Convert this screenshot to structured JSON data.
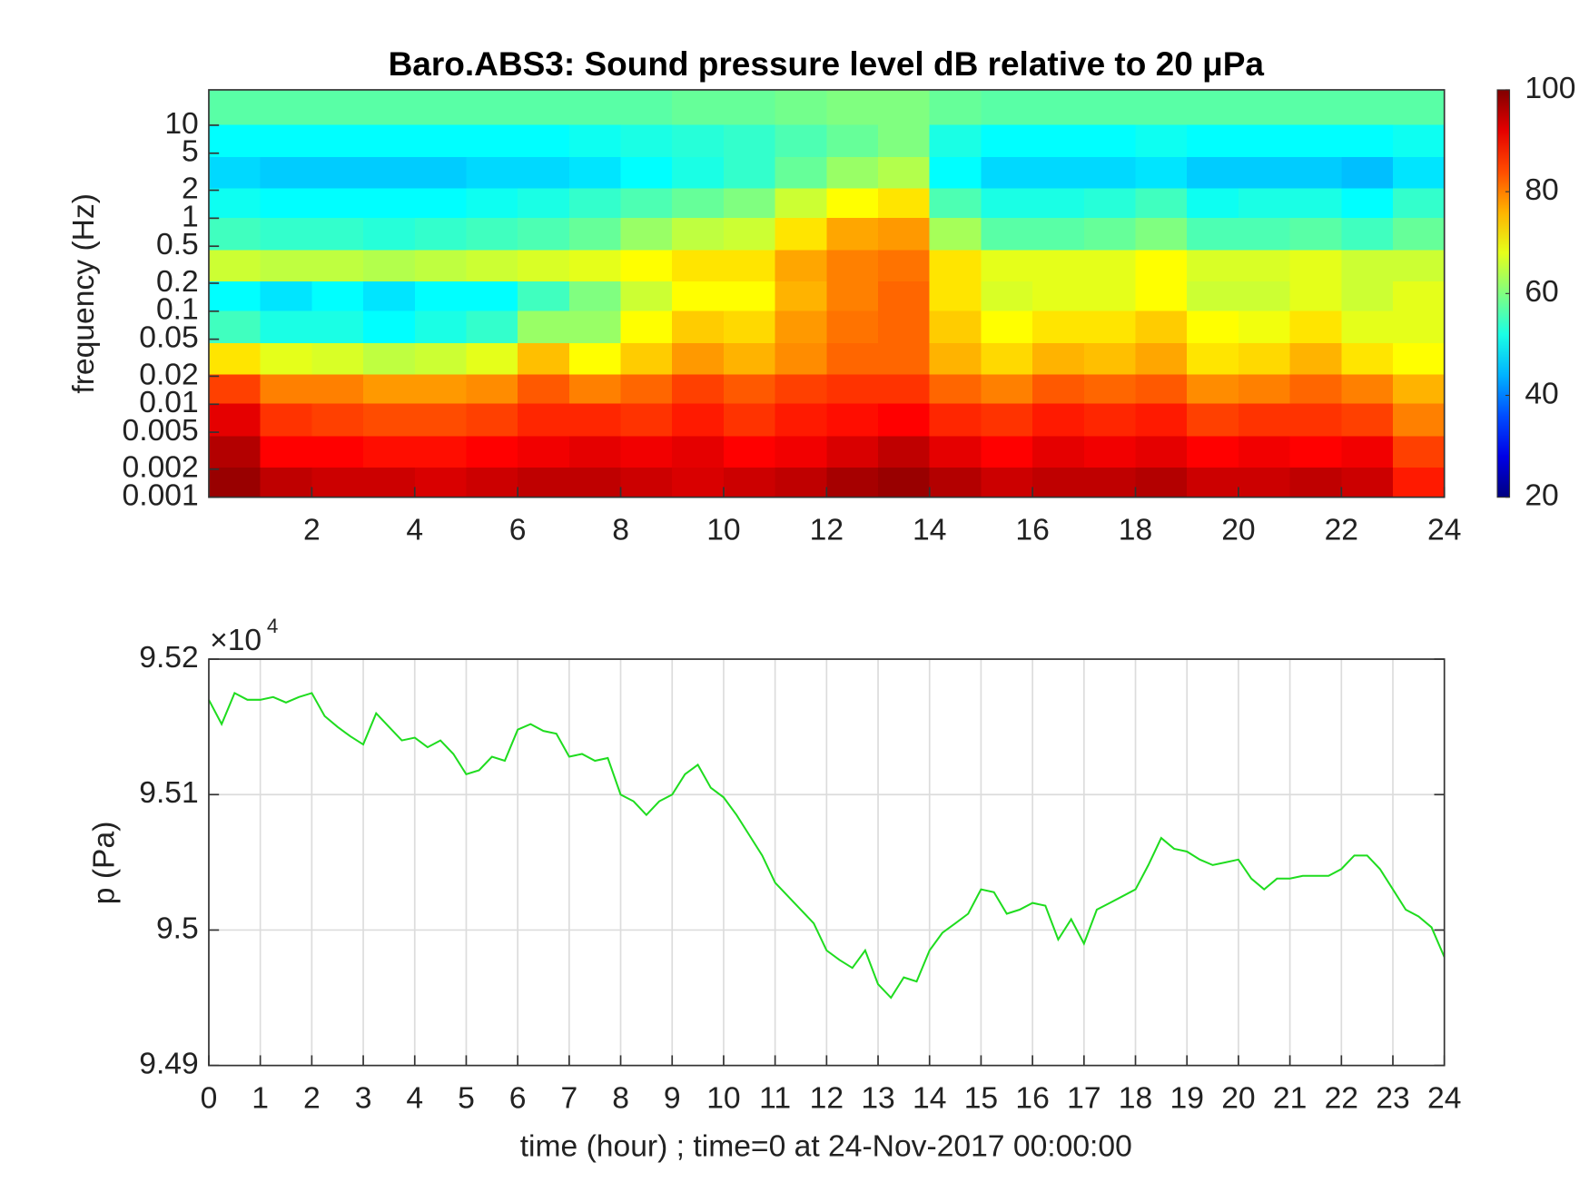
{
  "chart_data": [
    {
      "type": "heatmap",
      "title": "Baro.ABS3: Sound pressure level dB relative to 20 μPa",
      "y_label": "frequency (Hz)",
      "ylog": true,
      "x": [
        0.5,
        1.5,
        2.5,
        3.5,
        4.5,
        5.5,
        6.5,
        7.5,
        8.5,
        9.5,
        10.5,
        11.5,
        12.5,
        13.5,
        14.5,
        15.5,
        16.5,
        17.5,
        18.5,
        19.5,
        20.5,
        21.5,
        22.5,
        23.5
      ],
      "y": [
        0.0015,
        0.003,
        0.007,
        0.015,
        0.03,
        0.07,
        0.15,
        0.3,
        0.7,
        1.5,
        3,
        7,
        15
      ],
      "z": [
        [
          98,
          95,
          94,
          94,
          93,
          94,
          95,
          95,
          94,
          93,
          94,
          95,
          97,
          98,
          96,
          94,
          95,
          95,
          96,
          94,
          94,
          95,
          94,
          88
        ],
        [
          96,
          90,
          90,
          89,
          89,
          90,
          91,
          92,
          91,
          92,
          90,
          91,
          93,
          95,
          92,
          90,
          92,
          91,
          92,
          90,
          91,
          90,
          91,
          85
        ],
        [
          92,
          86,
          85,
          84,
          84,
          85,
          87,
          87,
          86,
          88,
          86,
          88,
          89,
          90,
          87,
          86,
          88,
          87,
          88,
          85,
          86,
          86,
          85,
          80
        ],
        [
          85,
          80,
          80,
          78,
          78,
          79,
          83,
          80,
          82,
          85,
          83,
          85,
          86,
          86,
          82,
          80,
          83,
          82,
          83,
          79,
          80,
          82,
          80,
          76
        ],
        [
          72,
          68,
          67,
          65,
          66,
          68,
          75,
          70,
          74,
          78,
          76,
          79,
          82,
          82,
          76,
          73,
          76,
          75,
          77,
          72,
          73,
          76,
          72,
          70
        ],
        [
          55,
          52,
          52,
          50,
          52,
          54,
          62,
          62,
          70,
          74,
          73,
          78,
          81,
          82,
          74,
          70,
          72,
          72,
          74,
          70,
          69,
          72,
          68,
          68
        ],
        [
          50,
          48,
          50,
          48,
          50,
          50,
          55,
          60,
          66,
          70,
          70,
          76,
          80,
          82,
          72,
          67,
          68,
          68,
          70,
          66,
          66,
          68,
          66,
          68
        ],
        [
          66,
          65,
          65,
          64,
          65,
          66,
          67,
          68,
          70,
          72,
          72,
          77,
          80,
          81,
          72,
          68,
          68,
          68,
          70,
          67,
          67,
          68,
          66,
          66
        ],
        [
          55,
          54,
          54,
          53,
          54,
          55,
          56,
          58,
          62,
          65,
          66,
          72,
          77,
          78,
          63,
          57,
          57,
          58,
          60,
          56,
          56,
          57,
          55,
          58
        ],
        [
          51,
          50,
          50,
          50,
          50,
          51,
          52,
          54,
          56,
          58,
          60,
          66,
          70,
          72,
          56,
          52,
          52,
          53,
          55,
          51,
          52,
          52,
          50,
          54
        ],
        [
          47,
          46,
          46,
          46,
          46,
          47,
          47,
          48,
          50,
          52,
          54,
          58,
          62,
          64,
          50,
          47,
          47,
          47,
          48,
          46,
          46,
          46,
          45,
          48
        ],
        [
          50,
          50,
          50,
          50,
          50,
          50,
          50,
          51,
          52,
          53,
          54,
          56,
          58,
          60,
          52,
          50,
          50,
          50,
          51,
          50,
          50,
          50,
          50,
          51
        ],
        [
          57,
          57,
          57,
          57,
          57,
          57,
          57,
          57,
          57,
          58,
          58,
          59,
          60,
          60,
          58,
          57,
          57,
          57,
          57,
          57,
          57,
          57,
          57,
          57
        ]
      ],
      "xlim": [
        0,
        24
      ],
      "xticks": [
        2,
        4,
        6,
        8,
        10,
        12,
        14,
        16,
        18,
        20,
        22,
        24
      ],
      "ylim": [
        0.001,
        24
      ],
      "yticks": [
        0.001,
        0.002,
        0.005,
        0.01,
        0.02,
        0.05,
        0.1,
        0.2,
        0.5,
        1,
        2,
        5,
        10
      ],
      "clim": [
        20,
        100
      ],
      "colorbar_ticks": [
        20,
        40,
        60,
        80,
        100
      ],
      "colormap": "jet",
      "grid": false
    },
    {
      "type": "line",
      "y_label": "p (Pa)",
      "x_label": "time (hour) ; time=0 at 24-Nov-2017 00:00:00",
      "offset_label": "×10",
      "offset_exponent": "4",
      "color": "#1fdc1f",
      "x": [
        0,
        0.25,
        0.5,
        0.75,
        1,
        1.25,
        1.5,
        1.75,
        2,
        2.25,
        2.5,
        2.75,
        3,
        3.25,
        3.5,
        3.75,
        4,
        4.25,
        4.5,
        4.75,
        5,
        5.25,
        5.5,
        5.75,
        6,
        6.25,
        6.5,
        6.75,
        7,
        7.25,
        7.5,
        7.75,
        8,
        8.25,
        8.5,
        8.75,
        9,
        9.25,
        9.5,
        9.75,
        10,
        10.25,
        10.5,
        10.75,
        11,
        11.25,
        11.5,
        11.75,
        12,
        12.25,
        12.5,
        12.75,
        13,
        13.25,
        13.5,
        13.75,
        14,
        14.25,
        14.5,
        14.75,
        15,
        15.25,
        15.5,
        15.75,
        16,
        16.25,
        16.5,
        16.75,
        17,
        17.25,
        17.5,
        17.75,
        18,
        18.25,
        18.5,
        18.75,
        19,
        19.25,
        19.5,
        19.75,
        20,
        20.25,
        20.5,
        20.75,
        21,
        21.25,
        21.5,
        21.75,
        22,
        22.25,
        22.5,
        22.75,
        23,
        23.25,
        23.5,
        23.75,
        24
      ],
      "values": [
        95170,
        95152,
        95175,
        95170,
        95170,
        95172,
        95168,
        95172,
        95175,
        95158,
        95150,
        95143,
        95137,
        95160,
        95150,
        95140,
        95142,
        95135,
        95140,
        95130,
        95115,
        95118,
        95128,
        95125,
        95148,
        95152,
        95147,
        95145,
        95128,
        95130,
        95125,
        95127,
        95100,
        95095,
        95085,
        95095,
        95100,
        95115,
        95122,
        95105,
        95098,
        95085,
        95070,
        95055,
        95035,
        95025,
        95015,
        95005,
        94985,
        94978,
        94972,
        94985,
        94960,
        94950,
        94965,
        94962,
        94985,
        94998,
        95005,
        95012,
        95030,
        95028,
        95012,
        95015,
        95020,
        95018,
        94993,
        95008,
        94990,
        95015,
        95020,
        95025,
        95030,
        95048,
        95068,
        95060,
        95058,
        95052,
        95048,
        95050,
        95052,
        95038,
        95030,
        95038,
        95038,
        95040,
        95040,
        95040,
        95045,
        95055,
        95055,
        95045,
        95030,
        95015,
        95010,
        95002,
        94980
      ],
      "xlim": [
        0,
        24
      ],
      "xticks": [
        0,
        1,
        2,
        3,
        4,
        5,
        6,
        7,
        8,
        9,
        10,
        11,
        12,
        13,
        14,
        15,
        16,
        17,
        18,
        19,
        20,
        21,
        22,
        23,
        24
      ],
      "ylim": [
        94900,
        95200
      ],
      "yticks": [
        {
          "value": 94900,
          "label": "9.49"
        },
        {
          "value": 95000,
          "label": "9.5"
        },
        {
          "value": 95100,
          "label": "9.51"
        },
        {
          "value": 95200,
          "label": "9.52"
        }
      ],
      "grid": true
    }
  ]
}
